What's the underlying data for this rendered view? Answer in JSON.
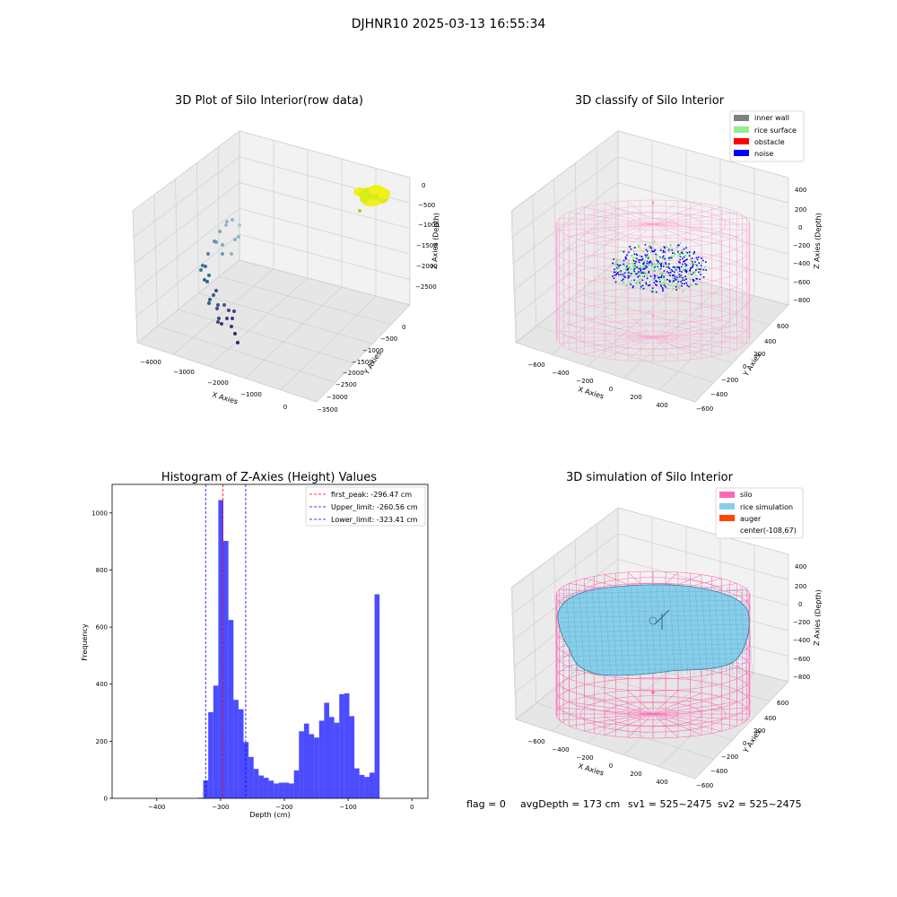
{
  "suptitle": "DJHNR10 2025-03-13 16:55:34",
  "footer": {
    "flag": "flag = 0",
    "avg": "avgDepth = 173 cm",
    "sv1": "sv1 = 525~2475",
    "sv2": "sv2 = 525~2475"
  },
  "colors": {
    "bar": "#0000ff",
    "inner_wall": "#808080",
    "rice_surface": "#90ee90",
    "obstacle": "#ff0000",
    "noise": "#0000ff",
    "silo": "#ff69b4",
    "rice_simulation": "#87ceeb",
    "auger": "#ff4500"
  },
  "chart_data": [
    {
      "type": "scatter",
      "projection": "3d",
      "title": "3D Plot of Silo Interior(row data)",
      "xlabel": "X Axies",
      "ylabel": "Y Axies",
      "zlabel": "Z Axies (Depth)",
      "xticks": [
        "−4000",
        "−3000",
        "−2000",
        "−1000",
        "0"
      ],
      "yticks": [
        "0",
        "−500",
        "−1000",
        "−1500",
        "−2000",
        "−2500",
        "−3000",
        "−3500"
      ],
      "zticks": [
        "0",
        "−500",
        "−1000",
        "−1500",
        "−2000",
        "−2500"
      ],
      "grid": true
    },
    {
      "type": "scatter",
      "projection": "3d",
      "title": "3D classify of Silo Interior",
      "xlabel": "X Axies",
      "ylabel": "Y Axies",
      "zlabel": "Z Axies (Depth)",
      "xticks": [
        "−600",
        "−400",
        "−200",
        "0",
        "200",
        "400"
      ],
      "yticks": [
        "600",
        "400",
        "200",
        "0",
        "−200",
        "−400",
        "−600"
      ],
      "zticks": [
        "400",
        "200",
        "0",
        "−200",
        "−400",
        "−600",
        "−800"
      ],
      "legend": {
        "position": "top-right",
        "entries": [
          "inner wall",
          "rice surface",
          "obstacle",
          "noise"
        ]
      },
      "grid": true
    },
    {
      "type": "bar",
      "title": "Histogram of Z-Axies (Height) Values",
      "xlabel": "Depth (cm)",
      "ylabel": "Frequency",
      "xlim": [
        -470,
        25
      ],
      "ylim": [
        0,
        1100
      ],
      "xticks": [
        -400,
        -300,
        -200,
        -100,
        0
      ],
      "yticks": [
        0,
        200,
        400,
        600,
        800,
        1000
      ],
      "bin_width": 7.9,
      "bins_start": [
        -335.1,
        -327.2,
        -319.3,
        -311.4,
        -303.5,
        -295.6,
        -287.7,
        -279.8,
        -271.9,
        -264.0,
        -256.1,
        -248.2,
        -240.3,
        -232.4,
        -224.5,
        -216.6,
        -208.7,
        -200.8,
        -192.9,
        -185.0,
        -177.1,
        -169.2,
        -161.3,
        -153.4,
        -145.5,
        -137.6,
        -129.7,
        -121.8,
        -113.9,
        -106.0,
        -98.1,
        -90.2,
        -82.3,
        -74.4,
        -66.5,
        -58.6,
        -50.7,
        -42.8,
        -34.9,
        -27.0,
        -19.1,
        -11.2,
        -3.3
      ],
      "values": [
        2,
        63,
        302,
        395,
        1045,
        902,
        625,
        345,
        312,
        197,
        145,
        103,
        80,
        72,
        62,
        52,
        55,
        55,
        52,
        98,
        235,
        262,
        225,
        213,
        272,
        335,
        285,
        265,
        365,
        368,
        288,
        105,
        82,
        75,
        90,
        715,
        0,
        0,
        0,
        0,
        0,
        0,
        0
      ],
      "reference_lines": [
        {
          "name": "first_peak",
          "x": -296.47,
          "label": "first_peak: -296.47 cm",
          "color": "#ff0000"
        },
        {
          "name": "Upper_limit",
          "x": -260.56,
          "label": "Upper_limit: -260.56 cm",
          "color": "#0000ff"
        },
        {
          "name": "Lower_limit",
          "x": -323.41,
          "label": "Lower_limit: -323.41 cm",
          "color": "#0000ff"
        }
      ],
      "legend": {
        "position": "top-right"
      },
      "grid": false
    },
    {
      "type": "surface",
      "projection": "3d",
      "title": "3D simulation of Silo Interior",
      "xlabel": "X Axies",
      "ylabel": "Y Axies",
      "zlabel": "Z Axies (Depth)",
      "xticks": [
        "−600",
        "−400",
        "−200",
        "0",
        "200",
        "400"
      ],
      "yticks": [
        "600",
        "400",
        "200",
        "0",
        "−200",
        "−400",
        "−600"
      ],
      "zticks": [
        "400",
        "200",
        "0",
        "−200",
        "−400",
        "−600",
        "−800"
      ],
      "legend": {
        "position": "top-right",
        "entries": [
          "silo",
          "rice simulation",
          "auger",
          "center(-108,67)"
        ]
      },
      "grid": true
    }
  ]
}
